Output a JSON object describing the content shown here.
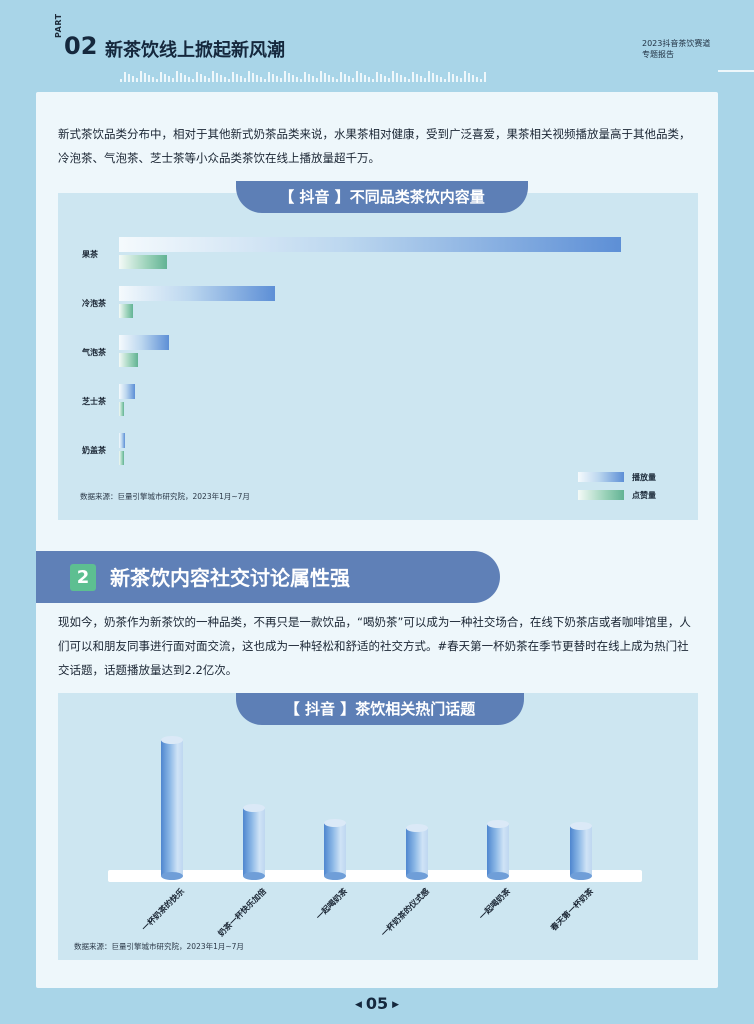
{
  "header": {
    "part_word": "PART",
    "part_number": "02",
    "section_title": "新茶饮线上掀起新风潮",
    "report_line1": "2023抖音茶饮赛道",
    "report_line2": "专题报告"
  },
  "intro_text": "新式茶饮品类分布中，相对于其他新式奶茶品类来说，水果茶相对健康，受到广泛喜爱，果茶相关视频播放量高于其他品类，冷泡茶、气泡茶、芝士茶等小众品类茶饮在线上播放量超千万。",
  "chart1_banner": "【 抖音 】不同品类茶饮内容量",
  "chart2_banner": "【 抖音 】茶饮相关热门话题",
  "section2": {
    "number": "2",
    "title": "新茶饮内容社交讨论属性强"
  },
  "section2_text": "现如今，奶茶作为新茶饮的一种品类，不再只是一款饮品，“喝奶茶”可以成为一种社交场合，在线下奶茶店或者咖啡馆里，人们可以和朋友同事进行面对面交流，这也成为一种轻松和舒适的社交方式。#春天第一杯奶茶在季节更替时在线上成为热门社交话题，话题播放量达到2.2亿次。",
  "source1": "数据来源：巨量引擎城市研究院，2023年1月~7月",
  "source2": "数据来源：巨量引擎城市研究院，2023年1月~7月",
  "page_number": "05",
  "colors": {
    "play": "#5d8fd6",
    "like": "#62b394",
    "banner": "#5d7fb6",
    "accent_green": "#5dbf91"
  },
  "chart_data": [
    {
      "type": "bar",
      "orientation": "horizontal",
      "title": "【 抖音 】不同品类茶饮内容量",
      "categories": [
        "果茶",
        "冷泡茶",
        "气泡茶",
        "芝士茶",
        "奶盖茶"
      ],
      "series": [
        {
          "name": "播放量",
          "values": [
            100,
            31,
            10,
            3.2,
            1.2
          ]
        },
        {
          "name": "点赞量",
          "values": [
            9.5,
            2.8,
            3.8,
            1.0,
            0.9
          ]
        }
      ],
      "legend": "bottom-right"
    },
    {
      "type": "bar",
      "title": "【 抖音 】茶饮相关热门话题",
      "categories": [
        "一杯奶茶的快乐",
        "奶茶一杯快乐加倍",
        "一起喝奶茶",
        "一杯奶茶的仪式感",
        "一起喝奶茶",
        "春天第一杯奶茶"
      ],
      "values": [
        100,
        50,
        39,
        35,
        38,
        37
      ]
    }
  ]
}
